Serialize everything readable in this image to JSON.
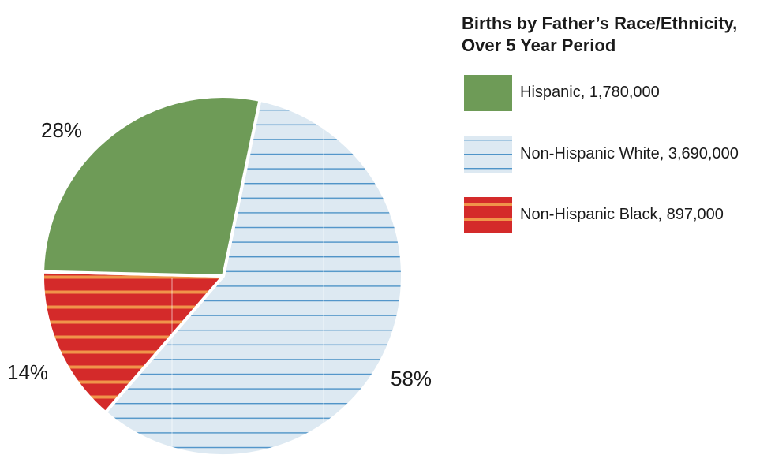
{
  "chart_data": {
    "type": "pie",
    "title": "Births by Father’s Race/Ethnicity, Over 5 Year Period",
    "title_lines": [
      "Births by Father’s Race/Ethnicity,",
      "Over 5 Year Period"
    ],
    "slices": [
      {
        "name": "Hispanic",
        "value": 1780000,
        "percent_label": "28%",
        "legend_label": "Hispanic, 1,780,000",
        "color": "#6e9b57",
        "pattern": "solid"
      },
      {
        "name": "Non-Hispanic White",
        "value": 3690000,
        "percent_label": "58%",
        "legend_label": "Non-Hispanic White, 3,690,000",
        "color": "#dde9f2",
        "stripe_color": "#4f94c8",
        "pattern": "horizontal-lines"
      },
      {
        "name": "Non-Hispanic Black",
        "value": 897000,
        "percent_label": "14%",
        "legend_label": "Non-Hispanic Black, 897,000",
        "color": "#d42a2a",
        "stripe_color": "#f0944a",
        "pattern": "horizontal-stripes"
      }
    ],
    "legend_position": "right"
  }
}
